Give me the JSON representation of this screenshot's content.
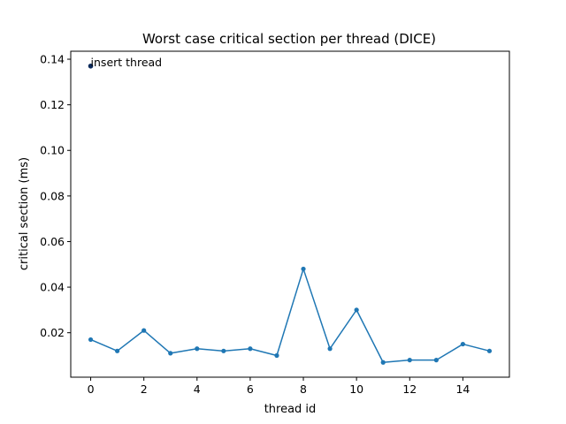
{
  "chart_data": {
    "type": "line",
    "title": "Worst case critical section per thread (DICE)",
    "xlabel": "thread id",
    "ylabel": "critical section (ms)",
    "xlim": [
      -0.75,
      15.75
    ],
    "ylim": [
      0.0005,
      0.1435
    ],
    "xticks": [
      0,
      2,
      4,
      6,
      8,
      10,
      12,
      14
    ],
    "xtick_labels": [
      "0",
      "2",
      "4",
      "6",
      "8",
      "10",
      "12",
      "14"
    ],
    "yticks": [
      0.02,
      0.04,
      0.06,
      0.08,
      0.1,
      0.12,
      0.14
    ],
    "ytick_labels": [
      "0.02",
      "0.04",
      "0.06",
      "0.08",
      "0.10",
      "0.12",
      "0.14"
    ],
    "grid": false,
    "series": [
      {
        "color": "#1f77b4",
        "x": [
          0,
          1,
          2,
          3,
          4,
          5,
          6,
          7,
          8,
          9,
          10,
          11,
          12,
          13,
          14,
          15
        ],
        "values": [
          0.017,
          0.012,
          0.021,
          0.011,
          0.013,
          0.012,
          0.013,
          0.01,
          0.048,
          0.013,
          0.03,
          0.007,
          0.008,
          0.008,
          0.015,
          0.012
        ]
      }
    ],
    "highlight_point": {
      "x": 0,
      "value": 0.137,
      "color": "#0b2a5c",
      "label": "insert thread"
    }
  }
}
